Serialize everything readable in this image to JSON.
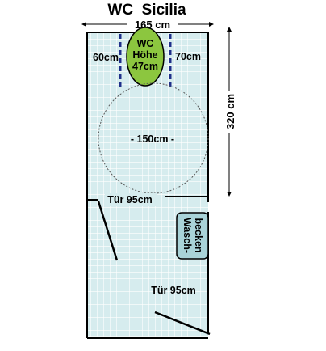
{
  "title": "WC  Sicilia",
  "width_label": "165 cm",
  "height_label": "320 cm",
  "wc": {
    "line1": "WC",
    "line2": "Höhe",
    "line3": "47cm",
    "left_clearance": "60cm",
    "right_clearance": "70cm"
  },
  "turning_circle": "- 150cm -",
  "door_top": "Tür 95cm",
  "door_bottom": "Tür 95cm",
  "sink": {
    "line1": "Wasch-",
    "line2": "becken"
  },
  "colors": {
    "floor": "#d6ecee",
    "grid": "#ffffff",
    "wall": "#000000",
    "toilet": "#8cc63f",
    "sink": "#a9d3d8",
    "clearance_lines": "#1f2f8a"
  }
}
